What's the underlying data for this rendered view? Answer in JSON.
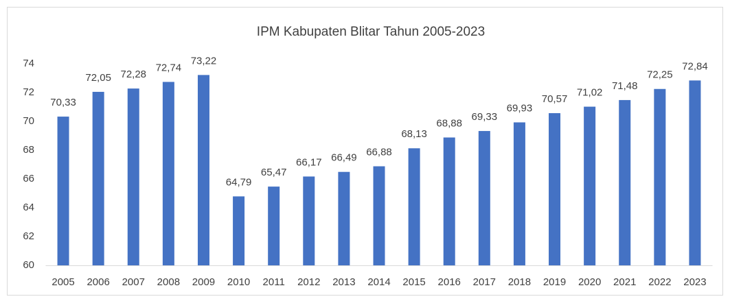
{
  "chart_data": {
    "type": "bar",
    "title": "IPM Kabupaten Blitar Tahun 2005-2023",
    "categories": [
      "2005",
      "2006",
      "2007",
      "2008",
      "2009",
      "2010",
      "2011",
      "2012",
      "2013",
      "2014",
      "2015",
      "2016",
      "2017",
      "2018",
      "2019",
      "2020",
      "2021",
      "2022",
      "2023"
    ],
    "values": [
      70.33,
      72.05,
      72.28,
      72.74,
      73.22,
      64.79,
      65.47,
      66.17,
      66.49,
      66.88,
      68.13,
      68.88,
      69.33,
      69.93,
      70.57,
      71.02,
      71.48,
      72.25,
      72.84
    ],
    "value_labels": [
      "70,33",
      "72,05",
      "72,28",
      "72,74",
      "73,22",
      "64,79",
      "65,47",
      "66,17",
      "66,49",
      "66,88",
      "68,13",
      "68,88",
      "69,33",
      "69,93",
      "70,57",
      "71,02",
      "71,48",
      "72,25",
      "72,84"
    ],
    "color": "#4472c4",
    "ylim": [
      60,
      74
    ],
    "yticks": [
      60,
      62,
      64,
      66,
      68,
      70,
      72,
      74
    ],
    "grid": false
  }
}
